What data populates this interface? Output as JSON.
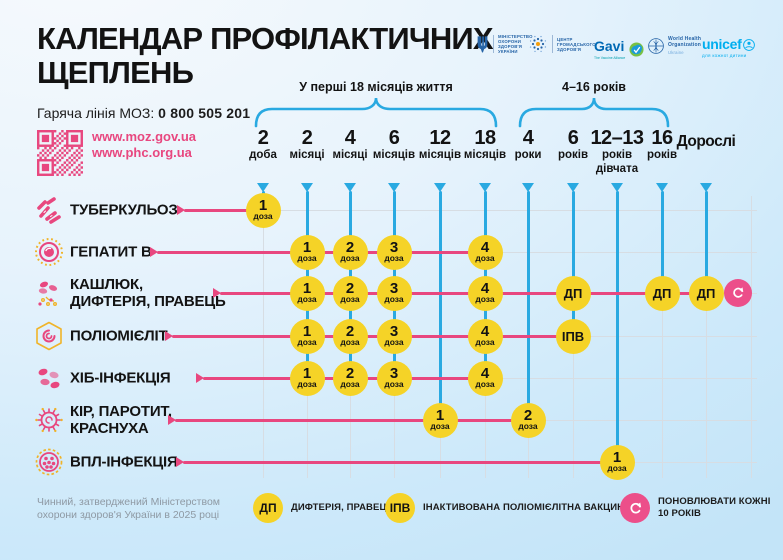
{
  "colors": {
    "pink": "#e8477f",
    "pink-badge": "#ec4f8a",
    "blue": "#29a9e1",
    "yellow": "#f5d327",
    "grid-grey": "#d7dde3",
    "footer-grey": "#8e99a3",
    "logo-blue": "#2563a6",
    "unicef": "#00aeef",
    "ink": "#131313"
  },
  "header": {
    "title_line1": "КАЛЕНДАР ПРОФІЛАКТИЧНИХ",
    "title_line2": "ЩЕПЛЕНЬ",
    "hotline_label": "Гаряча лінія МОЗ:",
    "hotline_number": "0 800 505 201",
    "links": [
      "www.moz.gov.ua",
      "www.phc.org.ua"
    ]
  },
  "logos": [
    {
      "id": "moz",
      "lines": [
        "МІНІСТЕРСТВО",
        "ОХОРОНИ",
        "ЗДОРОВ'Я",
        "УКРАЇНИ"
      ]
    },
    {
      "id": "phc",
      "lines": [
        "ЦЕНТР",
        "ГРОМАДСЬКОГО",
        "ЗДОРОВ'Я"
      ]
    },
    {
      "id": "gavi",
      "word": "Gavi",
      "sub": "The Vaccine Alliance"
    },
    {
      "id": "who",
      "lines": [
        "World Health",
        "Organization"
      ],
      "sub": "Ukraine"
    },
    {
      "id": "unicef",
      "word": "unicef",
      "sub": "для кожної дитини"
    }
  ],
  "timeline": {
    "brackets": [
      {
        "label": "У перші 18 місяців життя"
      },
      {
        "label": "4–16 років"
      }
    ],
    "columns": [
      {
        "num": "2",
        "unit": "доба"
      },
      {
        "num": "2",
        "unit": "місяці"
      },
      {
        "num": "4",
        "unit": "місяці"
      },
      {
        "num": "6",
        "unit": "місяців"
      },
      {
        "num": "12",
        "unit": "місяців"
      },
      {
        "num": "18",
        "unit": "місяців"
      },
      {
        "num": "4",
        "unit": "роки"
      },
      {
        "num": "6",
        "unit": "років"
      },
      {
        "num": "12–13",
        "unit": "років",
        "unit2": "дівчата"
      },
      {
        "num": "16",
        "unit": "років"
      },
      {
        "num": "Дорослі",
        "unit": ""
      }
    ]
  },
  "rows": [
    {
      "label_lines": [
        "ТУБЕРКУЛЬОЗ"
      ],
      "icon": "tuberculosis-icon",
      "doses": [
        {
          "col": 0,
          "value": "1",
          "sub": "доза"
        }
      ]
    },
    {
      "label_lines": [
        "ГЕПАТИТ В"
      ],
      "icon": "hepatitis-b-icon",
      "doses": [
        {
          "col": 1,
          "value": "1",
          "sub": "доза"
        },
        {
          "col": 2,
          "value": "2",
          "sub": "доза"
        },
        {
          "col": 3,
          "value": "3",
          "sub": "доза"
        },
        {
          "col": 5,
          "value": "4",
          "sub": "доза"
        }
      ]
    },
    {
      "label_lines": [
        "КАШЛЮК,",
        "ДИФТЕРІЯ, ПРАВЕЦЬ"
      ],
      "icon": "pertussis-diphtheria-tetanus-icon",
      "repeat_badge": true,
      "doses": [
        {
          "col": 1,
          "value": "1",
          "sub": "доза"
        },
        {
          "col": 2,
          "value": "2",
          "sub": "доза"
        },
        {
          "col": 3,
          "value": "3",
          "sub": "доза"
        },
        {
          "col": 5,
          "value": "4",
          "sub": "доза"
        },
        {
          "col": 7,
          "value": "ДП"
        },
        {
          "col": 9,
          "value": "ДП"
        },
        {
          "col": 10,
          "value": "ДП"
        }
      ]
    },
    {
      "label_lines": [
        "ПОЛІОМІЄЛІТ"
      ],
      "icon": "polio-icon",
      "doses": [
        {
          "col": 1,
          "value": "1",
          "sub": "доза"
        },
        {
          "col": 2,
          "value": "2",
          "sub": "доза"
        },
        {
          "col": 3,
          "value": "3",
          "sub": "доза"
        },
        {
          "col": 5,
          "value": "4",
          "sub": "доза"
        },
        {
          "col": 7,
          "value": "ІПВ"
        }
      ]
    },
    {
      "label_lines": [
        "ХІБ-ІНФЕКЦІЯ"
      ],
      "icon": "hib-icon",
      "doses": [
        {
          "col": 1,
          "value": "1",
          "sub": "доза"
        },
        {
          "col": 2,
          "value": "2",
          "sub": "доза"
        },
        {
          "col": 3,
          "value": "3",
          "sub": "доза"
        },
        {
          "col": 5,
          "value": "4",
          "sub": "доза"
        }
      ]
    },
    {
      "label_lines": [
        "КІР, ПАРОТИТ,",
        "КРАСНУХА"
      ],
      "icon": "measles-mumps-rubella-icon",
      "doses": [
        {
          "col": 4,
          "value": "1",
          "sub": "доза"
        },
        {
          "col": 6,
          "value": "2",
          "sub": "доза"
        }
      ]
    },
    {
      "label_lines": [
        "ВПЛ-ІНФЕКЦІЯ"
      ],
      "icon": "hpv-icon",
      "doses": [
        {
          "col": 8,
          "value": "1",
          "sub": "доза"
        }
      ]
    }
  ],
  "legend": {
    "items": [
      {
        "badge": "ДП",
        "type": "yellow",
        "text_lines": [
          "ДИФТЕРІЯ, ПРАВЕЦЬ"
        ]
      },
      {
        "badge": "ІПВ",
        "type": "yellow",
        "text_lines": [
          "ІНАКТИВОВАНА ПОЛІОМІЄЛІТНА ВАКЦИНА"
        ]
      },
      {
        "badge": "refresh-icon",
        "type": "pink-refresh",
        "text_lines": [
          "ПОНОВЛЮВАТИ КОЖНІ",
          "10 РОКІВ"
        ]
      }
    ]
  },
  "footer": {
    "lines": [
      "Чинний, затверджений Міністерством",
      "охорони здоров'я України в 2025 році"
    ]
  }
}
